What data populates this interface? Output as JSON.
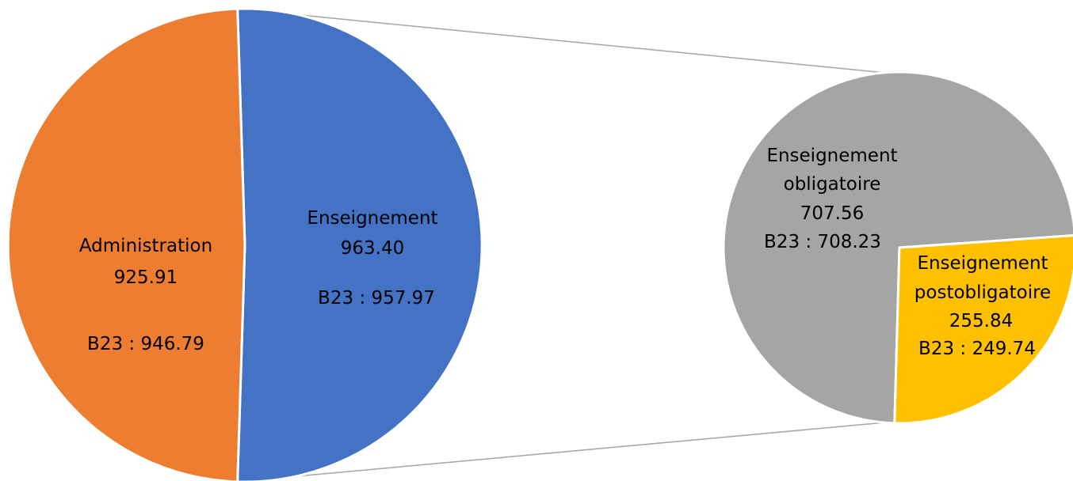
{
  "chart_data": {
    "type": "pie",
    "subtype": "pie-of-pie",
    "main_pie": {
      "slices": [
        {
          "label": "Enseignement",
          "value": 963.4,
          "value_text": "963.40",
          "reference_text": "B23 : 957.97",
          "color": "#4472C4"
        },
        {
          "label": "Administration",
          "value": 925.91,
          "value_text": "925.91",
          "reference_text": "B23 : 946.79",
          "color": "#ED7D31"
        }
      ]
    },
    "secondary_pie": {
      "expands": "Enseignement",
      "slices": [
        {
          "label": "Enseignement obligatoire",
          "label_lines": [
            "Enseignement",
            "obligatoire"
          ],
          "value": 707.56,
          "value_text": "707.56",
          "reference_text": "B23 : 708.23",
          "color": "#A5A5A5"
        },
        {
          "label": "Enseignement postobligatoire",
          "label_lines": [
            "Enseignement",
            "postobligatoire"
          ],
          "value": 255.84,
          "value_text": "255.84",
          "reference_text": "B23 : 249.74",
          "color": "#FFC000"
        }
      ]
    },
    "connector_color": "#A5A5A5",
    "slice_border_color": "#FFFFFF"
  }
}
